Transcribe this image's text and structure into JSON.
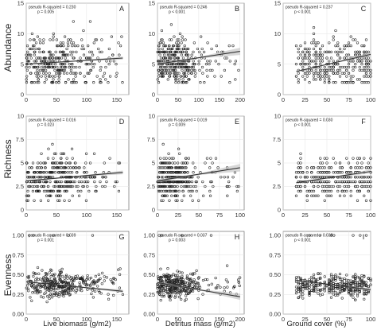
{
  "figure": {
    "row_labels": [
      "Abundance",
      "Richness",
      "Evenness"
    ],
    "column_labels": [
      "Live biomass (g/m2)",
      "Detritus mass (g/m2)",
      "Ground cover (%)"
    ]
  },
  "chart_data": [
    {
      "id": "A",
      "type": "scatter",
      "row": 0,
      "col": 0,
      "panel_label": "A",
      "stat_line1": "pseudo R-squared = 0.230",
      "stat_line2": "p = 0.005",
      "xlim": [
        0,
        170
      ],
      "xticks": [
        0,
        50,
        100,
        150
      ],
      "ylim": [
        0,
        15
      ],
      "yticks": [
        0,
        5,
        10,
        15
      ],
      "trend": [
        [
          0,
          5.0
        ],
        [
          160,
          6.0
        ]
      ],
      "band": 0.25,
      "n_points": 340,
      "x_dist": "skew",
      "x_mode": 50,
      "x_max": 160,
      "y_center": 5.3,
      "y_spread": 2.0,
      "y_min": 2,
      "y_max": 12
    },
    {
      "id": "B",
      "type": "scatter",
      "row": 0,
      "col": 1,
      "panel_label": "B",
      "stat_line1": "pseudo R-squared = 0.246",
      "stat_line2": "p < 0.001",
      "xlim": [
        0,
        210
      ],
      "xticks": [
        0,
        50,
        100,
        150,
        200
      ],
      "ylim": [
        0,
        15
      ],
      "yticks": [
        0,
        5,
        10,
        15
      ],
      "trend": [
        [
          0,
          5.0
        ],
        [
          200,
          7.1
        ]
      ],
      "band": 0.6,
      "n_points": 340,
      "x_dist": "skew",
      "x_mode": 40,
      "x_max": 200,
      "y_center": 5.4,
      "y_spread": 2.0,
      "y_min": 2,
      "y_max": 12
    },
    {
      "id": "C",
      "type": "scatter",
      "row": 0,
      "col": 2,
      "panel_label": "C",
      "stat_line1": "pseudo R-squared = 0.237",
      "stat_line2": "p < 0.001",
      "xlim": [
        0,
        100
      ],
      "xticks": [
        0,
        25,
        50,
        75,
        100
      ],
      "ylim": [
        0,
        15
      ],
      "yticks": [
        0,
        5,
        10,
        15
      ],
      "trend": [
        [
          15,
          3.8
        ],
        [
          100,
          6.6
        ]
      ],
      "band": 0.3,
      "n_points": 340,
      "x_dist": "uniform",
      "x_min": 15,
      "x_max": 100,
      "y_center": 5.2,
      "y_spread": 1.9,
      "y_min": 2,
      "y_max": 11
    },
    {
      "id": "D",
      "type": "scatter",
      "row": 1,
      "col": 0,
      "panel_label": "D",
      "stat_line1": "pseudo R-squared = 0.016",
      "stat_line2": "p = 0.023",
      "xlim": [
        0,
        170
      ],
      "xticks": [
        0,
        50,
        100,
        150
      ],
      "ylim": [
        0,
        10
      ],
      "yticks": [
        0,
        2.5,
        5,
        7.5,
        10
      ],
      "trend": [
        [
          0,
          3.1
        ],
        [
          160,
          4.0
        ]
      ],
      "band": 0.2,
      "n_points": 340,
      "x_dist": "skew",
      "x_mode": 50,
      "x_max": 160,
      "y_center": 3.4,
      "y_spread": 1.1,
      "y_min": 1,
      "y_max": 9
    },
    {
      "id": "E",
      "type": "scatter",
      "row": 1,
      "col": 1,
      "panel_label": "E",
      "stat_line1": "pseudo R-squared = 0.019",
      "stat_line2": "p = 0.009",
      "xlim": [
        0,
        105
      ],
      "xticks": [
        0,
        25,
        50,
        75,
        100
      ],
      "ylim": [
        0,
        10
      ],
      "yticks": [
        0,
        2.5,
        5,
        7.5,
        10
      ],
      "trend": [
        [
          0,
          3.1
        ],
        [
          100,
          4.5
        ]
      ],
      "band": 0.4,
      "n_points": 340,
      "x_dist": "skew",
      "x_mode": 18,
      "x_max": 100,
      "y_center": 3.4,
      "y_spread": 1.1,
      "y_min": 1,
      "y_max": 9
    },
    {
      "id": "F",
      "type": "scatter",
      "row": 1,
      "col": 2,
      "panel_label": "F",
      "stat_line1": "pseudo R-squared = 0.030",
      "stat_line2": "p < 0.001",
      "xlim": [
        0,
        100
      ],
      "xticks": [
        0,
        25,
        50,
        75,
        100
      ],
      "ylim": [
        0,
        10
      ],
      "yticks": [
        0,
        2.5,
        5,
        7.5,
        10
      ],
      "trend": [
        [
          15,
          2.9
        ],
        [
          100,
          4.1
        ]
      ],
      "band": 0.2,
      "n_points": 340,
      "x_dist": "uniform",
      "x_min": 15,
      "x_max": 100,
      "y_center": 3.4,
      "y_spread": 1.0,
      "y_min": 1,
      "y_max": 6.5
    },
    {
      "id": "G",
      "type": "scatter",
      "row": 2,
      "col": 0,
      "panel_label": "G",
      "stat_line1": "pseudo R-squared = 0.039",
      "stat_line2": "p = 0.001",
      "xlim": [
        0,
        170
      ],
      "xticks": [
        0,
        50,
        100,
        150
      ],
      "ylim": [
        0,
        1.05
      ],
      "yticks": [
        0,
        0.25,
        0.5,
        0.75,
        1.0
      ],
      "ytick_labels": [
        "0.00",
        "0.25",
        "0.50",
        "0.75",
        "1.00"
      ],
      "trend": [
        [
          0,
          0.41
        ],
        [
          160,
          0.29
        ]
      ],
      "band": 0.02,
      "n_points": 340,
      "x_dist": "skew",
      "x_mode": 50,
      "x_max": 160,
      "y_center": 0.37,
      "y_spread": 0.08,
      "y_min": 0.15,
      "y_max": 0.65,
      "top_points": [
        [
          5,
          1.0
        ],
        [
          12,
          1.0
        ],
        [
          45,
          1.0
        ],
        [
          70,
          1.0
        ],
        [
          110,
          1.0
        ]
      ]
    },
    {
      "id": "H",
      "type": "scatter",
      "row": 2,
      "col": 1,
      "panel_label": "H",
      "stat_line1": "pseudo R-squared = 0.037",
      "stat_line2": "p = 0.003",
      "xlim": [
        0,
        210
      ],
      "xticks": [
        0,
        50,
        100,
        150,
        200
      ],
      "ylim": [
        0,
        1.05
      ],
      "yticks": [
        0,
        0.25,
        0.5,
        0.75,
        1.0
      ],
      "ytick_labels": [
        "0.00",
        "0.25",
        "0.50",
        "0.75",
        "1.00"
      ],
      "trend": [
        [
          0,
          0.4
        ],
        [
          200,
          0.22
        ]
      ],
      "band": 0.04,
      "n_points": 340,
      "x_dist": "skew",
      "x_mode": 40,
      "x_max": 200,
      "y_center": 0.37,
      "y_spread": 0.08,
      "y_min": 0.15,
      "y_max": 0.65,
      "top_points": [
        [
          4,
          1.0
        ],
        [
          10,
          1.0
        ],
        [
          60,
          1.0
        ],
        [
          130,
          1.0
        ]
      ]
    },
    {
      "id": "I",
      "type": "scatter",
      "row": 2,
      "col": 2,
      "panel_label": "I",
      "stat_line1": "pseudo R-squared = 0.038",
      "stat_line2": "p < 0.001",
      "xlim": [
        0,
        100
      ],
      "xticks": [
        0,
        25,
        50,
        75,
        100
      ],
      "ylim": [
        0,
        1.05
      ],
      "yticks": [
        0,
        0.25,
        0.5,
        0.75,
        1.0
      ],
      "ytick_labels": [
        "0.00",
        "0.25",
        "0.50",
        "0.75",
        "1.00"
      ],
      "trend": [
        [
          15,
          0.43
        ],
        [
          100,
          0.31
        ]
      ],
      "band": 0.02,
      "n_points": 340,
      "x_dist": "uniform",
      "x_min": 15,
      "x_max": 100,
      "y_center": 0.36,
      "y_spread": 0.07,
      "y_min": 0.18,
      "y_max": 0.6,
      "top_points": [
        [
          30,
          1.0
        ],
        [
          42,
          1.0
        ],
        [
          55,
          1.0
        ],
        [
          58,
          1.0
        ],
        [
          80,
          1.0
        ],
        [
          88,
          1.0
        ],
        [
          95,
          1.0
        ]
      ]
    }
  ]
}
